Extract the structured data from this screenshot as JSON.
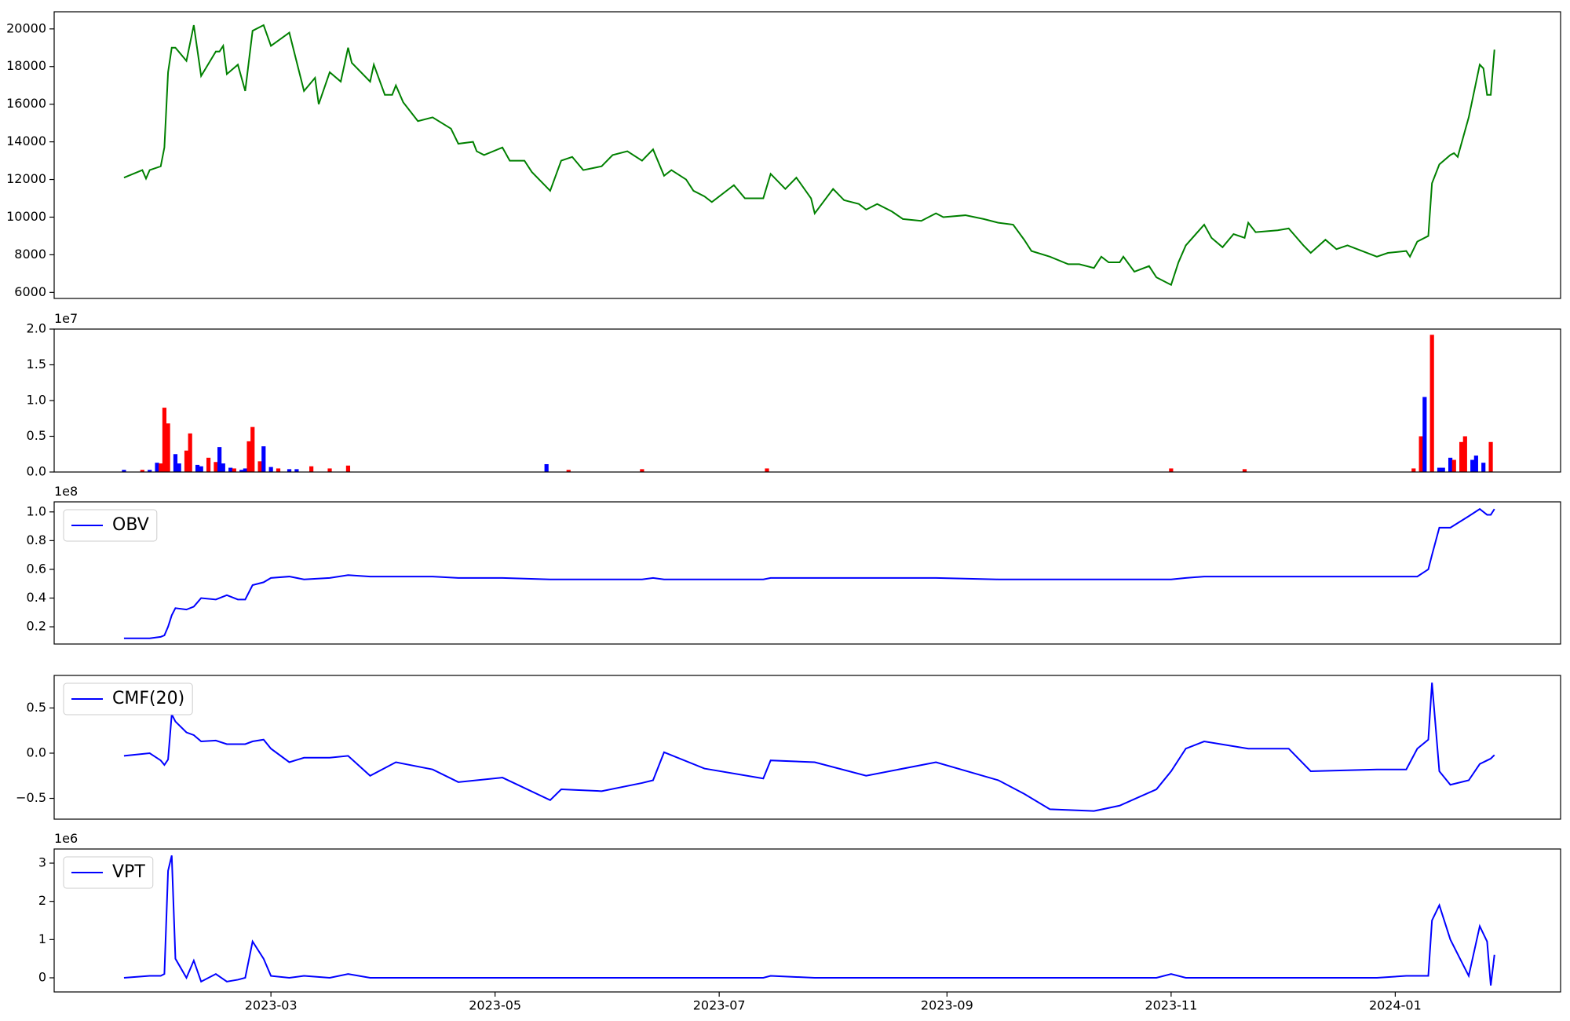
{
  "chart_data": [
    {
      "type": "line",
      "color": "#008000",
      "xlim": [
        "2023-01-01",
        "2024-02-15"
      ],
      "ylim": [
        5680,
        20910
      ],
      "yticks": [
        6000,
        8000,
        10000,
        12000,
        14000,
        16000,
        18000,
        20000
      ],
      "x": [
        "2023-01-20",
        "2023-01-25",
        "2023-01-26",
        "2023-01-27",
        "2023-01-30",
        "2023-01-31",
        "2023-02-01",
        "2023-02-02",
        "2023-02-03",
        "2023-02-06",
        "2023-02-08",
        "2023-02-10",
        "2023-02-14",
        "2023-02-15",
        "2023-02-16",
        "2023-02-17",
        "2023-02-20",
        "2023-02-22",
        "2023-02-24",
        "2023-02-27",
        "2023-03-01",
        "2023-03-06",
        "2023-03-10",
        "2023-03-13",
        "2023-03-14",
        "2023-03-17",
        "2023-03-20",
        "2023-03-22",
        "2023-03-23",
        "2023-03-28",
        "2023-03-29",
        "2023-04-01",
        "2023-04-03",
        "2023-04-04",
        "2023-04-06",
        "2023-04-10",
        "2023-04-14",
        "2023-04-19",
        "2023-04-21",
        "2023-04-25",
        "2023-04-26",
        "2023-04-28",
        "2023-05-03",
        "2023-05-05",
        "2023-05-09",
        "2023-05-11",
        "2023-05-16",
        "2023-05-19",
        "2023-05-22",
        "2023-05-25",
        "2023-05-30",
        "2023-06-02",
        "2023-06-06",
        "2023-06-10",
        "2023-06-13",
        "2023-06-16",
        "2023-06-18",
        "2023-06-22",
        "2023-06-24",
        "2023-06-27",
        "2023-06-29",
        "2023-07-05",
        "2023-07-08",
        "2023-07-13",
        "2023-07-15",
        "2023-07-19",
        "2023-07-22",
        "2023-07-26",
        "2023-07-27",
        "2023-08-01",
        "2023-08-04",
        "2023-08-08",
        "2023-08-10",
        "2023-08-13",
        "2023-08-17",
        "2023-08-20",
        "2023-08-25",
        "2023-08-29",
        "2023-08-31",
        "2023-09-06",
        "2023-09-11",
        "2023-09-15",
        "2023-09-19",
        "2023-09-22",
        "2023-09-24",
        "2023-09-29",
        "2023-10-04",
        "2023-10-07",
        "2023-10-11",
        "2023-10-13",
        "2023-10-15",
        "2023-10-18",
        "2023-10-19",
        "2023-10-22",
        "2023-10-26",
        "2023-10-28",
        "2023-11-01",
        "2023-11-03",
        "2023-11-05",
        "2023-11-10",
        "2023-11-12",
        "2023-11-15",
        "2023-11-18",
        "2023-11-21",
        "2023-11-22",
        "2023-11-24",
        "2023-11-30",
        "2023-12-03",
        "2023-12-07",
        "2023-12-09",
        "2023-12-13",
        "2023-12-16",
        "2023-12-19",
        "2023-12-27",
        "2023-12-30",
        "2024-01-04",
        "2024-01-05",
        "2024-01-07",
        "2024-01-10",
        "2024-01-11",
        "2024-01-13",
        "2024-01-16",
        "2024-01-17",
        "2024-01-18",
        "2024-01-21",
        "2024-01-24",
        "2024-01-25",
        "2024-01-26",
        "2024-01-27",
        "2024-01-28"
      ],
      "values": [
        12100,
        12500,
        12050,
        12500,
        12700,
        13700,
        17700,
        19000,
        19000,
        18300,
        20200,
        17500,
        18800,
        18800,
        19100,
        17600,
        18100,
        16700,
        19900,
        20200,
        19100,
        19800,
        16700,
        17400,
        16000,
        17700,
        17200,
        19000,
        18200,
        17200,
        18100,
        16500,
        16500,
        17000,
        16100,
        15100,
        15300,
        14700,
        13900,
        14000,
        13500,
        13300,
        13700,
        13000,
        13000,
        12400,
        11400,
        13000,
        13200,
        12500,
        12700,
        13300,
        13500,
        13000,
        13600,
        12200,
        12500,
        12000,
        11400,
        11100,
        10800,
        11700,
        11000,
        11000,
        12300,
        11500,
        12100,
        11000,
        10200,
        11500,
        10900,
        10700,
        10400,
        10700,
        10300,
        9900,
        9800,
        10200,
        10000,
        10100,
        9900,
        9700,
        9600,
        8800,
        8200,
        7900,
        7500,
        7500,
        7300,
        7900,
        7600,
        7600,
        7900,
        7100,
        7400,
        6800,
        6400,
        7600,
        8500,
        9600,
        8900,
        8400,
        9100,
        8900,
        9700,
        9200,
        9300,
        9400,
        8500,
        8100,
        8800,
        8300,
        8500,
        7900,
        8100,
        8200,
        7900,
        8700,
        9000,
        11800,
        12800,
        13300,
        13400,
        13200,
        15300,
        18100,
        17900,
        16500,
        16500,
        18900
      ]
    },
    {
      "type": "bar",
      "y_offset_label": "1e7",
      "xlim": [
        "2023-01-01",
        "2024-02-15"
      ],
      "ylim": [
        0,
        2.0
      ],
      "yticks": [
        {
          "value": 0,
          "label": "0.0"
        },
        0.5,
        {
          "value": 1.0,
          "label": "1.0"
        },
        1.5,
        {
          "value": 2.0,
          "label": "2.0"
        }
      ],
      "x": [
        "2023-01-20",
        "2023-01-25",
        "2023-01-27",
        "2023-01-29",
        "2023-01-30",
        "2023-01-31",
        "2023-02-01",
        "2023-02-03",
        "2023-02-04",
        "2023-02-06",
        "2023-02-07",
        "2023-02-09",
        "2023-02-10",
        "2023-02-12",
        "2023-02-14",
        "2023-02-15",
        "2023-02-16",
        "2023-02-18",
        "2023-02-19",
        "2023-02-21",
        "2023-02-22",
        "2023-02-23",
        "2023-02-24",
        "2023-02-26",
        "2023-02-27",
        "2023-03-01",
        "2023-03-03",
        "2023-03-06",
        "2023-03-08",
        "2023-03-12",
        "2023-03-17",
        "2023-03-22",
        "2023-05-15",
        "2023-05-21",
        "2023-06-10",
        "2023-07-14",
        "2023-11-01",
        "2023-11-21",
        "2024-01-06",
        "2024-01-08",
        "2024-01-09",
        "2024-01-11",
        "2024-01-13",
        "2024-01-14",
        "2024-01-16",
        "2024-01-17",
        "2024-01-19",
        "2024-01-20",
        "2024-01-22",
        "2024-01-23",
        "2024-01-25",
        "2024-01-27"
      ],
      "values": [
        0.03,
        0.03,
        0.03,
        0.13,
        0.12,
        0.9,
        0.68,
        0.25,
        0.12,
        0.3,
        0.54,
        0.1,
        0.08,
        0.2,
        0.14,
        0.35,
        0.12,
        0.06,
        0.05,
        0.03,
        0.05,
        0.43,
        0.63,
        0.15,
        0.36,
        0.07,
        0.05,
        0.04,
        0.04,
        0.08,
        0.05,
        0.09,
        0.11,
        0.03,
        0.04,
        0.05,
        0.05,
        0.04,
        0.05,
        0.5,
        1.05,
        1.92,
        0.06,
        0.06,
        0.2,
        0.17,
        0.42,
        0.5,
        0.17,
        0.23,
        0.13,
        0.42
      ],
      "colors": [
        "#0000ff",
        "#ff0000",
        "#0000ff",
        "#0000ff",
        "#ff0000",
        "#ff0000",
        "#ff0000",
        "#0000ff",
        "#0000ff",
        "#ff0000",
        "#ff0000",
        "#0000ff",
        "#0000ff",
        "#ff0000",
        "#ff0000",
        "#0000ff",
        "#0000ff",
        "#0000ff",
        "#ff0000",
        "#0000ff",
        "#0000ff",
        "#ff0000",
        "#ff0000",
        "#ff0000",
        "#0000ff",
        "#0000ff",
        "#ff0000",
        "#0000ff",
        "#0000ff",
        "#ff0000",
        "#ff0000",
        "#ff0000",
        "#0000ff",
        "#ff0000",
        "#ff0000",
        "#ff0000",
        "#ff0000",
        "#ff0000",
        "#ff0000",
        "#ff0000",
        "#0000ff",
        "#ff0000",
        "#0000ff",
        "#0000ff",
        "#0000ff",
        "#ff0000",
        "#ff0000",
        "#ff0000",
        "#0000ff",
        "#0000ff",
        "#0000ff",
        "#ff0000"
      ]
    },
    {
      "type": "line",
      "y_offset_label": "1e8",
      "legend": "upper left",
      "xlim": [
        "2023-01-01",
        "2024-02-15"
      ],
      "ylim": [
        0.08,
        1.07
      ],
      "yticks": [
        0.2,
        0.4,
        0.6,
        0.8,
        {
          "value": 1.0,
          "label": "1.0"
        }
      ],
      "x": [
        "2023-01-20",
        "2023-01-27",
        "2023-01-30",
        "2023-01-31",
        "2023-02-01",
        "2023-02-02",
        "2023-02-03",
        "2023-02-06",
        "2023-02-08",
        "2023-02-10",
        "2023-02-14",
        "2023-02-17",
        "2023-02-20",
        "2023-02-22",
        "2023-02-24",
        "2023-02-27",
        "2023-03-01",
        "2023-03-06",
        "2023-03-10",
        "2023-03-17",
        "2023-03-22",
        "2023-03-28",
        "2023-04-04",
        "2023-04-14",
        "2023-04-21",
        "2023-05-03",
        "2023-05-16",
        "2023-05-19",
        "2023-05-30",
        "2023-06-10",
        "2023-06-13",
        "2023-06-16",
        "2023-06-27",
        "2023-07-13",
        "2023-07-15",
        "2023-07-27",
        "2023-08-10",
        "2023-08-29",
        "2023-09-15",
        "2023-09-22",
        "2023-09-29",
        "2023-10-11",
        "2023-10-18",
        "2023-10-28",
        "2023-11-01",
        "2023-11-05",
        "2023-11-10",
        "2023-11-22",
        "2023-12-03",
        "2023-12-09",
        "2023-12-27",
        "2024-01-04",
        "2024-01-07",
        "2024-01-10",
        "2024-01-11",
        "2024-01-13",
        "2024-01-16",
        "2024-01-21",
        "2024-01-24",
        "2024-01-26",
        "2024-01-27",
        "2024-01-28"
      ],
      "series": [
        {
          "name": "OBV",
          "color": "#0000ff",
          "values": [
            0.12,
            0.12,
            0.13,
            0.14,
            0.2,
            0.28,
            0.33,
            0.32,
            0.34,
            0.4,
            0.39,
            0.42,
            0.39,
            0.39,
            0.49,
            0.51,
            0.54,
            0.55,
            0.53,
            0.54,
            0.56,
            0.55,
            0.55,
            0.55,
            0.54,
            0.54,
            0.53,
            0.53,
            0.53,
            0.53,
            0.54,
            0.53,
            0.53,
            0.53,
            0.54,
            0.54,
            0.54,
            0.54,
            0.53,
            0.53,
            0.53,
            0.53,
            0.53,
            0.53,
            0.53,
            0.54,
            0.55,
            0.55,
            0.55,
            0.55,
            0.55,
            0.55,
            0.55,
            0.6,
            0.7,
            0.89,
            0.89,
            0.97,
            1.02,
            0.98,
            0.98,
            1.02
          ]
        }
      ]
    },
    {
      "type": "line",
      "legend": "upper left",
      "xlim": [
        "2023-01-01",
        "2024-02-15"
      ],
      "ylim": [
        -0.73,
        0.86
      ],
      "yticks": [
        {
          "value": -0.5,
          "label": "−0.5"
        },
        {
          "value": 0,
          "label": "0.0"
        },
        0.5
      ],
      "x": [
        "2023-01-20",
        "2023-01-27",
        "2023-01-30",
        "2023-01-31",
        "2023-02-01",
        "2023-02-02",
        "2023-02-03",
        "2023-02-06",
        "2023-02-08",
        "2023-02-10",
        "2023-02-14",
        "2023-02-17",
        "2023-02-20",
        "2023-02-22",
        "2023-02-24",
        "2023-02-27",
        "2023-03-01",
        "2023-03-06",
        "2023-03-10",
        "2023-03-17",
        "2023-03-22",
        "2023-03-28",
        "2023-04-04",
        "2023-04-14",
        "2023-04-21",
        "2023-05-03",
        "2023-05-16",
        "2023-05-19",
        "2023-05-30",
        "2023-06-10",
        "2023-06-13",
        "2023-06-16",
        "2023-06-27",
        "2023-07-13",
        "2023-07-15",
        "2023-07-27",
        "2023-08-10",
        "2023-08-29",
        "2023-09-15",
        "2023-09-22",
        "2023-09-29",
        "2023-10-11",
        "2023-10-18",
        "2023-10-28",
        "2023-11-01",
        "2023-11-05",
        "2023-11-10",
        "2023-11-22",
        "2023-12-03",
        "2023-12-09",
        "2023-12-27",
        "2024-01-04",
        "2024-01-07",
        "2024-01-10",
        "2024-01-11",
        "2024-01-13",
        "2024-01-16",
        "2024-01-21",
        "2024-01-24",
        "2024-01-26",
        "2024-01-27",
        "2024-01-28"
      ],
      "series": [
        {
          "name": "CMF(20)",
          "color": "#0000ff",
          "values": [
            -0.03,
            0,
            -0.08,
            -0.13,
            -0.07,
            0.43,
            0.35,
            0.23,
            0.2,
            0.13,
            0.14,
            0.1,
            0.1,
            0.1,
            0.13,
            0.15,
            0.05,
            -0.1,
            -0.05,
            -0.05,
            -0.03,
            -0.25,
            -0.1,
            -0.18,
            -0.32,
            -0.27,
            -0.52,
            -0.4,
            -0.42,
            -0.33,
            -0.3,
            0.01,
            -0.17,
            -0.28,
            -0.08,
            -0.1,
            -0.25,
            -0.1,
            -0.3,
            -0.45,
            -0.62,
            -0.64,
            -0.58,
            -0.4,
            -0.2,
            0.05,
            0.13,
            0.05,
            0.05,
            -0.2,
            -0.18,
            -0.18,
            0.05,
            0.15,
            0.78,
            -0.2,
            -0.35,
            -0.3,
            -0.12,
            -0.08,
            -0.06,
            -0.02
          ]
        }
      ]
    },
    {
      "type": "line",
      "y_offset_label": "1e6",
      "legend": "upper left",
      "xlim": [
        "2023-01-01",
        "2024-02-15"
      ],
      "ylim": [
        -0.37,
        3.37
      ],
      "yticks": [
        0,
        1,
        2,
        3
      ],
      "xticks": [
        "2023-03",
        "2023-05",
        "2023-07",
        "2023-09",
        "2023-11",
        "2024-01"
      ],
      "x": [
        "2023-01-20",
        "2023-01-27",
        "2023-01-30",
        "2023-01-31",
        "2023-02-01",
        "2023-02-02",
        "2023-02-03",
        "2023-02-06",
        "2023-02-08",
        "2023-02-10",
        "2023-02-14",
        "2023-02-17",
        "2023-02-20",
        "2023-02-22",
        "2023-02-24",
        "2023-02-27",
        "2023-03-01",
        "2023-03-06",
        "2023-03-10",
        "2023-03-17",
        "2023-03-22",
        "2023-03-28",
        "2023-04-04",
        "2023-04-14",
        "2023-04-21",
        "2023-05-03",
        "2023-05-16",
        "2023-05-19",
        "2023-05-30",
        "2023-06-10",
        "2023-06-13",
        "2023-06-16",
        "2023-06-27",
        "2023-07-13",
        "2023-07-15",
        "2023-07-27",
        "2023-08-10",
        "2023-08-29",
        "2023-09-15",
        "2023-09-22",
        "2023-09-29",
        "2023-10-11",
        "2023-10-18",
        "2023-10-28",
        "2023-11-01",
        "2023-11-05",
        "2023-11-10",
        "2023-11-22",
        "2023-12-03",
        "2023-12-09",
        "2023-12-27",
        "2024-01-04",
        "2024-01-07",
        "2024-01-10",
        "2024-01-11",
        "2024-01-13",
        "2024-01-16",
        "2024-01-21",
        "2024-01-24",
        "2024-01-26",
        "2024-01-27",
        "2024-01-28"
      ],
      "series": [
        {
          "name": "VPT",
          "color": "#0000ff",
          "values": [
            0,
            0.05,
            0.05,
            0.1,
            2.8,
            3.2,
            0.5,
            0,
            0.45,
            -0.1,
            0.1,
            -0.1,
            -0.05,
            0,
            0.95,
            0.5,
            0.05,
            0,
            0.05,
            0,
            0.1,
            0,
            0,
            0,
            0,
            0,
            0,
            0,
            0,
            0,
            0,
            0,
            0,
            0,
            0.05,
            0,
            0,
            0,
            0,
            0,
            0,
            0,
            0,
            0,
            0.1,
            0,
            0,
            0,
            0,
            0,
            0,
            0.05,
            0.05,
            0.05,
            1.5,
            1.9,
            1.0,
            0.05,
            1.35,
            0.95,
            -0.2,
            0.6
          ]
        }
      ]
    }
  ]
}
